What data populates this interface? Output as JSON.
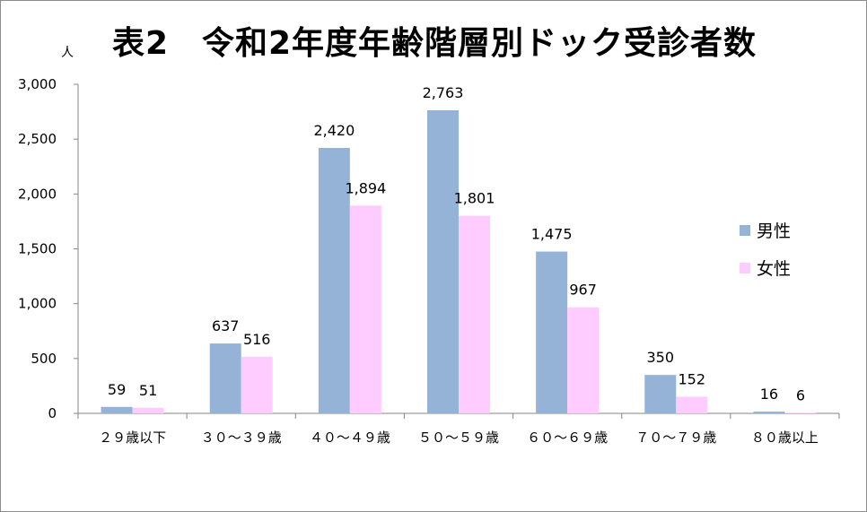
{
  "chart_data": {
    "type": "bar",
    "title": "表2　令和2年度年齢階層別ドック受診者数",
    "ylabel": "人",
    "xlabel": "",
    "ylim": [
      0,
      3000
    ],
    "yticks": [
      0,
      500,
      1000,
      1500,
      2000,
      2500,
      3000
    ],
    "ytick_labels": [
      "0",
      "500",
      "1,000",
      "1,500",
      "2,000",
      "2,500",
      "3,000"
    ],
    "grid": false,
    "legend_position": "right",
    "categories": [
      "２９歳以下",
      "３０～３９歳",
      "４０～４９歳",
      "５０～５９歳",
      "６０～６９歳",
      "７０～７９歳",
      "８０歳以上"
    ],
    "series": [
      {
        "name": "男性",
        "color": "#95b3d7",
        "values": [
          59,
          637,
          2420,
          2763,
          1475,
          350,
          16
        ],
        "labels": [
          "59",
          "637",
          "2,420",
          "2,763",
          "1,475",
          "350",
          "16"
        ]
      },
      {
        "name": "女性",
        "color": "#ffccff",
        "values": [
          51,
          516,
          1894,
          1801,
          967,
          152,
          6
        ],
        "labels": [
          "51",
          "516",
          "1,894",
          "1,801",
          "967",
          "152",
          "6"
        ]
      }
    ]
  }
}
